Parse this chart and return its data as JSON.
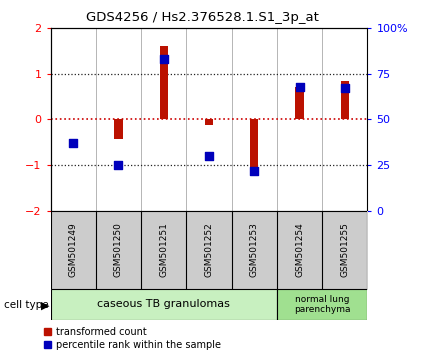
{
  "title": "GDS4256 / Hs2.376528.1.S1_3p_at",
  "samples": [
    "GSM501249",
    "GSM501250",
    "GSM501251",
    "GSM501252",
    "GSM501253",
    "GSM501254",
    "GSM501255"
  ],
  "transformed_count": [
    0.02,
    -0.42,
    1.62,
    -0.12,
    -1.15,
    0.72,
    0.85
  ],
  "percentile_rank": [
    37,
    25,
    83,
    30,
    22,
    68,
    67
  ],
  "group1_n": 5,
  "group2_n": 2,
  "group1_label": "caseous TB granulomas",
  "group1_color": "#c8f0c0",
  "group2_label": "normal lung\nparenchyma",
  "group2_color": "#a0e090",
  "bar_color_red": "#bb1100",
  "bar_color_blue": "#0000bb",
  "ylim_left": [
    -2,
    2
  ],
  "ylim_right": [
    0,
    100
  ],
  "yticks_left": [
    -2,
    -1,
    0,
    1,
    2
  ],
  "yticks_right": [
    0,
    25,
    50,
    75,
    100
  ],
  "ytick_right_labels": [
    "0",
    "25",
    "50",
    "75",
    "100%"
  ],
  "legend_red_label": "transformed count",
  "legend_blue_label": "percentile rank within the sample",
  "cell_type_label": "cell type",
  "background_color": "#ffffff",
  "plot_bg_color": "#ffffff",
  "dotted_color_zero": "#cc0000",
  "dotted_color_grid": "#222222",
  "bar_width": 0.18,
  "header_bg": "#cccccc",
  "separator_color": "#999999"
}
